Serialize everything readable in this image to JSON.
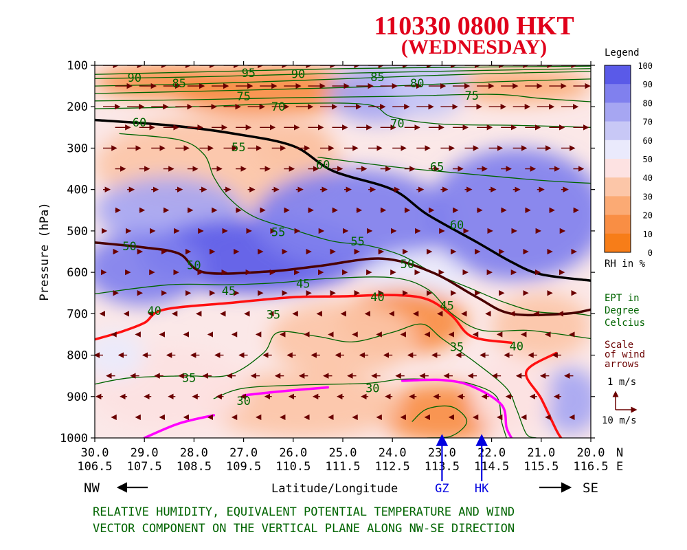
{
  "chart_data": {
    "type": "heatmap",
    "title": "110330  0800 HKT",
    "subtitle": "(WEDNESDAY)",
    "ylabel": "Pressure (hPa)",
    "xlabel": "Latitude/Longitude",
    "yticks": [
      "100",
      "200",
      "300",
      "400",
      "500",
      "600",
      "700",
      "800",
      "900",
      "1000"
    ],
    "ylim": [
      100,
      1000
    ],
    "xlim_latitude": [
      30.0,
      20.0
    ],
    "x_lat_ticks": [
      "30.0",
      "29.0",
      "28.0",
      "27.0",
      "26.0",
      "25.0",
      "24.0",
      "23.0",
      "22.0",
      "21.0",
      "20.0"
    ],
    "x_lon_ticks": [
      "106.5",
      "107.5",
      "108.5",
      "109.5",
      "110.5",
      "111.5",
      "112.5",
      "113.5",
      "114.5",
      "115.5",
      "116.5"
    ],
    "x_unit_top": "N",
    "x_unit_bottom": "E",
    "markers": [
      {
        "label": "GZ",
        "lat": 23.0,
        "color": "#0000e0"
      },
      {
        "label": "HK",
        "lat": 22.2,
        "color": "#0000e0"
      }
    ],
    "direction_left": "NW",
    "direction_right": "SE",
    "legend": {
      "title": "Legend",
      "levels": [
        "100",
        "90",
        "80",
        "70",
        "60",
        "50",
        "40",
        "30",
        "20",
        "10",
        "0"
      ],
      "colors": [
        "#5a5ae8",
        "#8080ee",
        "#a6a6f2",
        "#c8c8f6",
        "#eaeafc",
        "#fde2e2",
        "#fcc6a8",
        "#fbaa74",
        "#f98e44",
        "#f77d18"
      ],
      "unit": "RH in %"
    },
    "ept_label": [
      "EPT in",
      "Degree",
      "Celcius"
    ],
    "scale_label": [
      "Scale",
      "of wind",
      "arrows"
    ],
    "scale_vertical": "1 m/s",
    "scale_horizontal": "10 m/s",
    "caption": [
      "RELATIVE HUMIDITY, EQUIVALENT POTENTIAL TEMPERATURE AND WIND",
      "VECTOR COMPONENT ON THE VERTICAL PLANE ALONG NW-SE DIRECTION"
    ],
    "rh_patches": [
      {
        "lat": 26.5,
        "p": 160,
        "rlat": 2.0,
        "rp": 60,
        "rh": 10
      },
      {
        "lat": 28.5,
        "p": 140,
        "rlat": 1.5,
        "rp": 40,
        "rh": 15
      },
      {
        "lat": 21.5,
        "p": 150,
        "rlat": 1.5,
        "rp": 40,
        "rh": 20
      },
      {
        "lat": 26.0,
        "p": 300,
        "rlat": 0.8,
        "rp": 60,
        "rh": 25
      },
      {
        "lat": 24.3,
        "p": 170,
        "rlat": 1.0,
        "rp": 70,
        "rh": 75
      },
      {
        "lat": 23.3,
        "p": 150,
        "rlat": 0.8,
        "rp": 80,
        "rh": 65
      },
      {
        "lat": 27.5,
        "p": 340,
        "rlat": 2.5,
        "rp": 120,
        "rh": 35
      },
      {
        "lat": 28.5,
        "p": 450,
        "rlat": 1.5,
        "rp": 80,
        "rh": 70
      },
      {
        "lat": 26.8,
        "p": 560,
        "rlat": 2.3,
        "rp": 90,
        "rh": 90
      },
      {
        "lat": 24.8,
        "p": 470,
        "rlat": 2.0,
        "rp": 120,
        "rh": 80
      },
      {
        "lat": 21.5,
        "p": 460,
        "rlat": 1.8,
        "rp": 160,
        "rh": 88
      },
      {
        "lat": 29.0,
        "p": 590,
        "rlat": 1.2,
        "rp": 90,
        "rh": 85
      },
      {
        "lat": 23.5,
        "p": 610,
        "rlat": 1.0,
        "rp": 60,
        "rh": 55
      },
      {
        "lat": 23.8,
        "p": 720,
        "rlat": 1.3,
        "rp": 80,
        "rh": 18
      },
      {
        "lat": 25.0,
        "p": 760,
        "rlat": 1.5,
        "rp": 90,
        "rh": 30
      },
      {
        "lat": 23.0,
        "p": 940,
        "rlat": 1.3,
        "rp": 70,
        "rh": 15
      },
      {
        "lat": 25.8,
        "p": 920,
        "rlat": 2.0,
        "rp": 80,
        "rh": 30
      },
      {
        "lat": 28.5,
        "p": 880,
        "rlat": 1.6,
        "rp": 100,
        "rh": 45
      },
      {
        "lat": 21.0,
        "p": 730,
        "rlat": 1.0,
        "rp": 80,
        "rh": 35
      },
      {
        "lat": 20.4,
        "p": 910,
        "rlat": 0.6,
        "rp": 80,
        "rh": 75
      },
      {
        "lat": 29.6,
        "p": 800,
        "rlat": 0.6,
        "rp": 60,
        "rh": 55
      },
      {
        "lat": 21.6,
        "p": 900,
        "rlat": 0.8,
        "rp": 90,
        "rh": 45
      }
    ],
    "ept_contours": [
      {
        "value": 95,
        "points": [
          [
            30,
            122
          ],
          [
            27.5,
            115
          ],
          [
            25,
            108
          ],
          [
            22,
            104
          ],
          [
            20,
            102
          ]
        ]
      },
      {
        "value": 90,
        "points": [
          [
            30,
            132
          ],
          [
            28,
            128
          ],
          [
            26,
            122
          ],
          [
            24.5,
            118
          ],
          [
            22,
            112
          ],
          [
            20,
            108
          ]
        ]
      },
      {
        "value": 85,
        "points": [
          [
            30,
            150
          ],
          [
            28,
            145
          ],
          [
            26,
            137
          ],
          [
            24,
            128
          ],
          [
            22,
            120
          ],
          [
            20,
            115
          ]
        ]
      },
      {
        "value": 80,
        "points": [
          [
            30,
            168
          ],
          [
            28,
            163
          ],
          [
            26,
            157
          ],
          [
            24,
            150
          ],
          [
            22,
            140
          ],
          [
            20,
            133
          ]
        ]
      },
      {
        "value": 75,
        "points": [
          [
            30,
            186
          ],
          [
            28,
            183
          ],
          [
            26,
            178
          ],
          [
            24,
            175
          ],
          [
            22,
            170
          ],
          [
            21,
            180
          ],
          [
            20,
            188
          ]
        ]
      },
      {
        "value": 70,
        "points": [
          [
            30,
            205
          ],
          [
            28,
            200
          ],
          [
            26,
            192
          ],
          [
            24.5,
            195
          ],
          [
            24,
            225
          ],
          [
            23,
            242
          ],
          [
            21.5,
            245
          ],
          [
            20,
            250
          ]
        ]
      },
      {
        "value": 65,
        "points": [
          [
            25.5,
            322
          ],
          [
            24,
            345
          ],
          [
            22.5,
            362
          ],
          [
            21,
            378
          ],
          [
            20,
            385
          ]
        ]
      },
      {
        "value": 60,
        "thick": true,
        "points": [
          [
            30,
            232
          ],
          [
            28.5,
            245
          ],
          [
            27.2,
            265
          ],
          [
            26,
            295
          ],
          [
            25.2,
            355
          ],
          [
            24,
            400
          ],
          [
            23.3,
            460
          ],
          [
            22.3,
            527
          ],
          [
            21.6,
            575
          ],
          [
            21.0,
            605
          ],
          [
            20,
            620
          ]
        ]
      },
      {
        "value": 55,
        "points": [
          [
            29.5,
            265
          ],
          [
            28.3,
            280
          ],
          [
            27.8,
            315
          ],
          [
            27.6,
            370
          ],
          [
            27.3,
            420
          ],
          [
            26.8,
            465
          ],
          [
            26.0,
            497
          ],
          [
            25.2,
            525
          ],
          [
            24.5,
            535
          ],
          [
            23.8,
            560
          ],
          [
            23.2,
            600
          ],
          [
            22.4,
            640
          ],
          [
            21.8,
            670
          ],
          [
            21.1,
            695
          ],
          [
            20.3,
            700
          ],
          [
            20,
            705
          ]
        ]
      },
      {
        "value": 50,
        "thick": true,
        "points": [
          [
            30,
            528
          ],
          [
            29,
            540
          ],
          [
            28.3,
            555
          ],
          [
            27.8,
            600
          ],
          [
            26.5,
            598
          ],
          [
            25.5,
            585
          ],
          [
            24.2,
            567
          ],
          [
            23.2,
            600
          ],
          [
            22.3,
            660
          ],
          [
            21.6,
            700
          ],
          [
            20.5,
            700
          ],
          [
            20,
            690
          ]
        ]
      },
      {
        "value": 45,
        "points": [
          [
            30,
            652
          ],
          [
            28.5,
            630
          ],
          [
            27.3,
            630
          ],
          [
            26.3,
            625
          ],
          [
            25.3,
            615
          ],
          [
            24.0,
            613
          ],
          [
            23.3,
            640
          ],
          [
            22.8,
            700
          ],
          [
            22.2,
            740
          ],
          [
            21.3,
            740
          ],
          [
            20.6,
            750
          ],
          [
            20,
            760
          ]
        ]
      },
      {
        "value": 40,
        "thick": true,
        "points": [
          [
            30,
            762
          ],
          [
            29.5,
            745
          ],
          [
            29.0,
            722
          ],
          [
            28.6,
            690
          ],
          [
            27.2,
            673
          ],
          [
            26.0,
            660
          ],
          [
            25.0,
            658
          ],
          [
            24.0,
            655
          ],
          [
            23.3,
            665
          ],
          [
            22.8,
            705
          ],
          [
            22.4,
            755
          ],
          [
            21.6,
            770
          ]
        ]
      },
      {
        "value": 40,
        "thick": true,
        "points": [
          [
            20.7,
            795
          ],
          [
            21.3,
            840
          ],
          [
            21.0,
            905
          ],
          [
            20.7,
            980
          ],
          [
            20.6,
            1000
          ]
        ]
      },
      {
        "value": 35,
        "points": [
          [
            30,
            870
          ],
          [
            29.3,
            855
          ],
          [
            28.2,
            850
          ],
          [
            27.3,
            848
          ],
          [
            26.6,
            795
          ],
          [
            26.3,
            745
          ],
          [
            25.5,
            755
          ],
          [
            24.8,
            768
          ],
          [
            24.0,
            745
          ],
          [
            23.4,
            725
          ],
          [
            23.0,
            760
          ],
          [
            22.3,
            820
          ],
          [
            21.7,
            880
          ],
          [
            21.5,
            930
          ],
          [
            21.3,
            990
          ],
          [
            21.1,
            1000
          ]
        ]
      },
      {
        "value": 30,
        "points": [
          [
            27.6,
            905
          ],
          [
            27.0,
            880
          ],
          [
            25.8,
            872
          ],
          [
            24.5,
            868
          ],
          [
            23.8,
            858
          ],
          [
            23.0,
            860
          ],
          [
            22.4,
            870
          ],
          [
            21.9,
            900
          ],
          [
            21.8,
            960
          ],
          [
            21.7,
            1000
          ]
        ]
      },
      {
        "value": 30,
        "thick": true,
        "points": [
          [
            29.0,
            1000
          ],
          [
            28.3,
            965
          ],
          [
            27.6,
            945
          ]
        ]
      },
      {
        "value": 30,
        "thick": true,
        "points": [
          [
            27.0,
            897
          ],
          [
            26.3,
            888
          ],
          [
            25.3,
            878
          ]
        ]
      },
      {
        "value": 30,
        "thick": true,
        "points": [
          [
            23.8,
            862
          ],
          [
            23.0,
            860
          ],
          [
            22.4,
            875
          ],
          [
            21.8,
            920
          ],
          [
            21.7,
            975
          ],
          [
            21.6,
            1000
          ]
        ]
      },
      {
        "value": 25,
        "points": [
          [
            23.6,
            960
          ],
          [
            23.3,
            930
          ],
          [
            22.8,
            925
          ],
          [
            22.5,
            960
          ],
          [
            22.8,
            995
          ],
          [
            23.3,
            1000
          ]
        ]
      }
    ],
    "ept_labels": [
      {
        "text": "95",
        "lat": 26.9,
        "p": 118
      },
      {
        "text": "90",
        "lat": 29.2,
        "p": 130
      },
      {
        "text": "90",
        "lat": 25.9,
        "p": 121
      },
      {
        "text": "85",
        "lat": 28.3,
        "p": 143
      },
      {
        "text": "85",
        "lat": 24.3,
        "p": 128
      },
      {
        "text": "80",
        "lat": 23.5,
        "p": 143
      },
      {
        "text": "75",
        "lat": 27.0,
        "p": 175
      },
      {
        "text": "75",
        "lat": 22.4,
        "p": 173
      },
      {
        "text": "70",
        "lat": 26.3,
        "p": 200
      },
      {
        "text": "70",
        "lat": 23.9,
        "p": 240
      },
      {
        "text": "65",
        "lat": 23.1,
        "p": 345
      },
      {
        "text": "60",
        "lat": 29.1,
        "p": 238
      },
      {
        "text": "60",
        "lat": 25.4,
        "p": 340
      },
      {
        "text": "60",
        "lat": 22.7,
        "p": 485
      },
      {
        "text": "55",
        "lat": 27.1,
        "p": 298
      },
      {
        "text": "55",
        "lat": 26.3,
        "p": 503
      },
      {
        "text": "55",
        "lat": 24.7,
        "p": 525
      },
      {
        "text": "50",
        "lat": 29.3,
        "p": 537
      },
      {
        "text": "50",
        "lat": 28.0,
        "p": 582
      },
      {
        "text": "50",
        "lat": 23.7,
        "p": 580
      },
      {
        "text": "45",
        "lat": 27.3,
        "p": 645
      },
      {
        "text": "45",
        "lat": 25.8,
        "p": 627
      },
      {
        "text": "45",
        "lat": 22.9,
        "p": 680
      },
      {
        "text": "40",
        "lat": 28.8,
        "p": 693
      },
      {
        "text": "40",
        "lat": 24.3,
        "p": 660
      },
      {
        "text": "40",
        "lat": 21.5,
        "p": 778
      },
      {
        "text": "35",
        "lat": 26.4,
        "p": 702
      },
      {
        "text": "35",
        "lat": 22.7,
        "p": 780
      },
      {
        "text": "35",
        "lat": 28.1,
        "p": 855
      },
      {
        "text": "30",
        "lat": 27.0,
        "p": 910
      },
      {
        "text": "30",
        "lat": 24.4,
        "p": 880
      }
    ],
    "wind_rows": [
      {
        "p": 100,
        "u": 9
      },
      {
        "p": 150,
        "u": 10
      },
      {
        "p": 200,
        "u": 10
      },
      {
        "p": 250,
        "u": 9
      },
      {
        "p": 300,
        "u": 8
      },
      {
        "p": 350,
        "u": 6
      },
      {
        "p": 400,
        "u": 4
      },
      {
        "p": 450,
        "u": 3
      },
      {
        "p": 500,
        "u": 2
      },
      {
        "p": 550,
        "u": 1
      },
      {
        "p": 600,
        "u": 0.5
      },
      {
        "p": 650,
        "u": 0.5
      },
      {
        "p": 700,
        "u": -0.5
      },
      {
        "p": 750,
        "u": -2
      },
      {
        "p": 800,
        "u": -5
      },
      {
        "p": 850,
        "u": -5
      },
      {
        "p": 900,
        "u": -4
      },
      {
        "p": 950,
        "u": -2
      }
    ]
  }
}
